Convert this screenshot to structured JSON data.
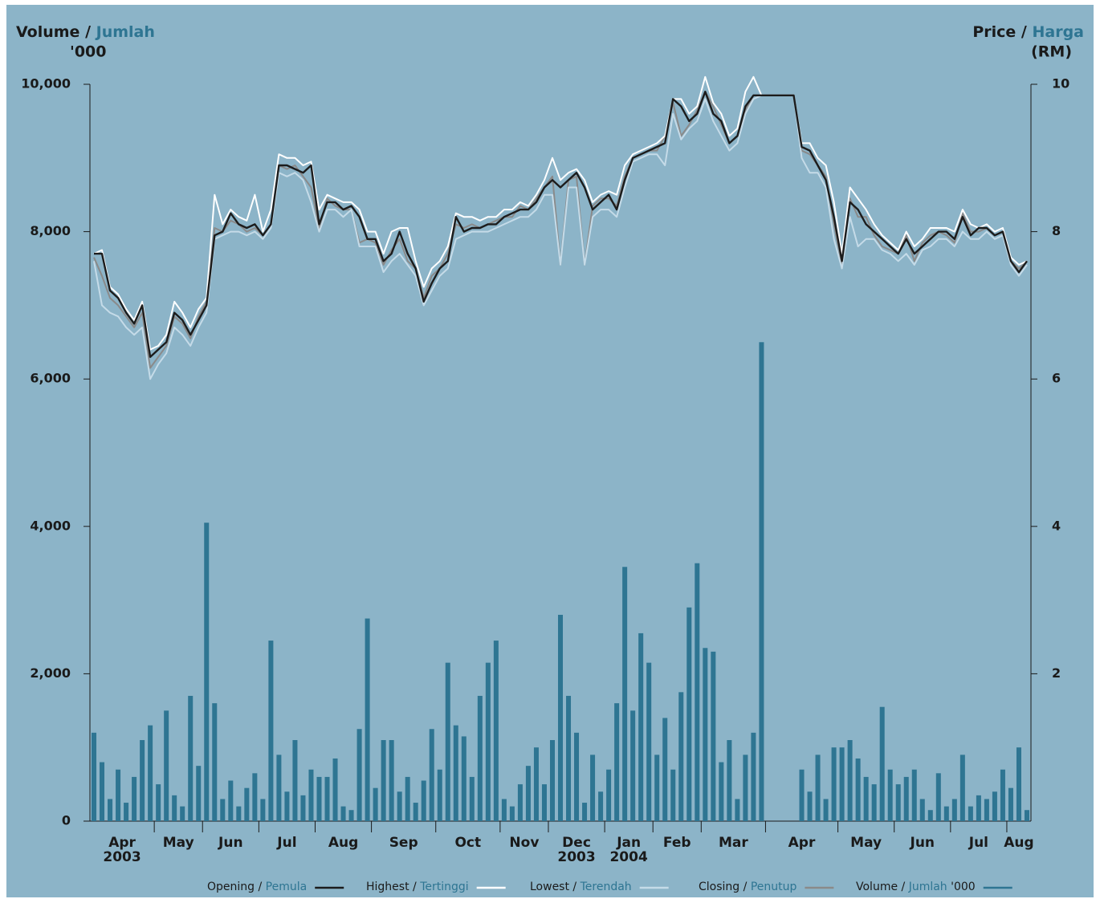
{
  "chart_data": {
    "type": "line",
    "y_label": "Volume",
    "y_label_alt": "Jumlah",
    "y_unit": "'000",
    "y2_label": "Price",
    "y2_label_alt": "Harga",
    "y2_unit": "(RM)",
    "categories": [
      "Apr",
      "May",
      "Jun",
      "Jul",
      "Aug",
      "Sep",
      "Oct",
      "Nov",
      "Dec",
      "Jan",
      "Feb",
      "Mar",
      "Apr",
      "May",
      "Jun",
      "Jul",
      "Aug"
    ],
    "years": [
      "2003",
      null,
      null,
      null,
      null,
      null,
      null,
      null,
      "2003",
      "2004",
      null,
      null,
      null,
      null,
      null,
      null,
      null
    ],
    "ylim": [
      0,
      10000
    ],
    "yticks": [
      0,
      {
        "value": 2000,
        "label": "2,000"
      },
      {
        "value": 4000,
        "label": "4,000"
      },
      {
        "value": 6000,
        "label": "6,000"
      },
      {
        "value": 8000,
        "label": "8,000"
      },
      {
        "value": 10000,
        "label": "10,000"
      }
    ],
    "y2lim": [
      0,
      10
    ],
    "y2ticks": [
      2,
      4,
      6,
      8,
      10
    ],
    "background": "#8cb4c8",
    "series": [
      {
        "name": "Closing",
        "alt_name": "Penutup",
        "color": "#8a8a8a",
        "axis": "y2",
        "values": [
          [
            7.65,
            7.4,
            7.1,
            7.0,
            6.85,
            6.7,
            6.9,
            6.15
          ],
          [
            6.3,
            6.45,
            6.85,
            6.75,
            6.55,
            6.85
          ],
          [
            7.05,
            8.05,
            8.0,
            8.15,
            8.1,
            8.0,
            8.05
          ],
          [
            7.95,
            8.1,
            8.9,
            8.85,
            8.9,
            8.75,
            8.6
          ],
          [
            8.05,
            8.45,
            8.35,
            8.3,
            8.3,
            7.85,
            7.9
          ],
          [
            7.85,
            7.55,
            7.75,
            7.9,
            7.6,
            7.5,
            7.1,
            7.4
          ],
          [
            7.5,
            7.7,
            8.1,
            8.05,
            8.1,
            8.05,
            8.1,
            8.15
          ],
          [
            8.2,
            8.2,
            8.35,
            8.3,
            8.45,
            8.6
          ],
          [
            8.75,
            7.55,
            8.7,
            8.75,
            7.55,
            8.35,
            8.45
          ],
          [
            8.45,
            8.35,
            8.75,
            9.0,
            9.05,
            9.1
          ],
          [
            9.1,
            9.3,
            9.75,
            9.3,
            9.45,
            9.65
          ],
          [
            9.9,
            9.7,
            9.45,
            9.2,
            9.3,
            9.65,
            9.85,
            9.85
          ],
          [
            9.85,
            9.85,
            9.85,
            9.85,
            9.1,
            9.05,
            8.9,
            8.75,
            8.1
          ],
          [
            7.55,
            8.45,
            8.2,
            8.2,
            7.95,
            7.8,
            7.75
          ],
          [
            7.7,
            7.95,
            7.6,
            7.85,
            7.95,
            8.0,
            7.95
          ],
          [
            7.85,
            8.25,
            8.0,
            8.0,
            8.05,
            7.95,
            8.0
          ],
          [
            7.6,
            7.5,
            7.6
          ]
        ]
      },
      {
        "name": "Lowest",
        "alt_name": "Terendah",
        "color": "#c5dbe8",
        "axis": "y2",
        "values": [
          [
            7.6,
            7.0,
            6.9,
            6.85,
            6.7,
            6.6,
            6.7,
            6.0
          ],
          [
            6.2,
            6.35,
            6.7,
            6.6,
            6.45,
            6.7
          ],
          [
            6.9,
            7.9,
            7.95,
            8.0,
            8.0,
            7.95,
            8.0
          ],
          [
            7.9,
            8.05,
            8.8,
            8.75,
            8.8,
            8.7,
            8.4
          ],
          [
            8.0,
            8.3,
            8.3,
            8.2,
            8.3,
            7.8,
            7.8
          ],
          [
            7.8,
            7.45,
            7.6,
            7.7,
            7.55,
            7.4,
            7.0,
            7.2
          ],
          [
            7.4,
            7.5,
            7.9,
            7.95,
            8.0,
            8.0,
            8.0,
            8.05
          ],
          [
            8.1,
            8.15,
            8.2,
            8.2,
            8.3,
            8.5
          ],
          [
            8.5,
            7.55,
            8.6,
            8.6,
            7.55,
            8.2,
            8.3
          ],
          [
            8.3,
            8.2,
            8.6,
            8.95,
            9.0,
            9.05
          ],
          [
            9.05,
            8.9,
            9.6,
            9.25,
            9.4,
            9.5
          ],
          [
            9.8,
            9.5,
            9.3,
            9.1,
            9.2,
            9.6,
            9.8,
            9.85
          ],
          [
            9.85,
            9.85,
            9.85,
            9.85,
            9.0,
            8.8,
            8.8,
            8.6,
            7.9
          ],
          [
            7.5,
            8.2,
            7.8,
            7.9,
            7.9,
            7.75,
            7.7
          ],
          [
            7.6,
            7.7,
            7.55,
            7.75,
            7.8,
            7.9,
            7.9
          ],
          [
            7.8,
            8.0,
            7.9,
            7.9,
            8.0,
            7.9,
            7.95
          ],
          [
            7.55,
            7.4,
            7.55
          ]
        ]
      },
      {
        "name": "Highest",
        "alt_name": "Tertinggi",
        "color": "#ffffff",
        "axis": "y2",
        "values": [
          [
            7.7,
            7.75,
            7.25,
            7.15,
            6.95,
            6.8,
            7.05,
            6.4
          ],
          [
            6.45,
            6.6,
            7.05,
            6.9,
            6.7,
            6.95
          ],
          [
            7.1,
            8.5,
            8.1,
            8.3,
            8.2,
            8.15,
            8.5
          ],
          [
            8.0,
            8.3,
            9.05,
            9.0,
            9.0,
            8.9,
            8.95
          ],
          [
            8.3,
            8.5,
            8.45,
            8.4,
            8.4,
            8.3,
            8.0
          ],
          [
            8.0,
            7.7,
            8.0,
            8.05,
            8.05,
            7.6,
            7.25,
            7.5
          ],
          [
            7.6,
            7.8,
            8.25,
            8.2,
            8.2,
            8.15,
            8.2,
            8.2
          ],
          [
            8.3,
            8.3,
            8.4,
            8.35,
            8.5,
            8.7
          ],
          [
            9.0,
            8.7,
            8.8,
            8.85,
            8.7,
            8.4,
            8.5
          ],
          [
            8.55,
            8.5,
            8.9,
            9.05,
            9.1,
            9.15
          ],
          [
            9.2,
            9.3,
            9.8,
            9.8,
            9.6,
            9.7
          ],
          [
            10.1,
            9.75,
            9.6,
            9.3,
            9.4,
            9.9,
            10.1,
            9.85
          ],
          [
            9.85,
            9.85,
            9.85,
            9.85,
            9.2,
            9.2,
            9.0,
            8.9,
            8.4
          ],
          [
            7.7,
            8.6,
            8.45,
            8.3,
            8.1,
            7.95,
            7.85
          ],
          [
            7.75,
            8.0,
            7.8,
            7.9,
            8.05,
            8.05,
            8.05
          ],
          [
            8.0,
            8.3,
            8.1,
            8.05,
            8.1,
            8.0,
            8.05
          ],
          [
            7.65,
            7.55,
            7.6
          ]
        ]
      },
      {
        "name": "Opening",
        "alt_name": "Pemula",
        "color": "#1c1c1c",
        "axis": "y2",
        "values": [
          [
            7.7,
            7.7,
            7.2,
            7.1,
            6.9,
            6.75,
            7.0,
            6.3
          ],
          [
            6.4,
            6.5,
            6.9,
            6.8,
            6.6,
            6.8
          ],
          [
            7.0,
            7.95,
            8.0,
            8.25,
            8.1,
            8.05,
            8.1
          ],
          [
            7.95,
            8.1,
            8.9,
            8.9,
            8.85,
            8.8,
            8.9
          ],
          [
            8.1,
            8.4,
            8.4,
            8.3,
            8.35,
            8.2,
            7.9
          ],
          [
            7.9,
            7.6,
            7.7,
            8.0,
            7.7,
            7.5,
            7.05,
            7.3
          ],
          [
            7.5,
            7.6,
            8.2,
            8.0,
            8.05,
            8.05,
            8.1,
            8.1
          ],
          [
            8.2,
            8.25,
            8.3,
            8.3,
            8.4,
            8.6
          ],
          [
            8.7,
            8.6,
            8.7,
            8.8,
            8.6,
            8.3,
            8.4
          ],
          [
            8.5,
            8.3,
            8.7,
            9.0,
            9.05,
            9.1
          ],
          [
            9.15,
            9.2,
            9.8,
            9.7,
            9.5,
            9.6
          ],
          [
            9.9,
            9.6,
            9.5,
            9.2,
            9.3,
            9.7,
            9.85,
            9.85
          ],
          [
            9.85,
            9.85,
            9.85,
            9.85,
            9.15,
            9.1,
            8.9,
            8.7,
            8.2
          ],
          [
            7.6,
            8.4,
            8.3,
            8.1,
            8.0,
            7.9,
            7.8
          ],
          [
            7.7,
            7.9,
            7.7,
            7.8,
            7.9,
            8.0,
            8.0
          ],
          [
            7.9,
            8.2,
            7.95,
            8.05,
            8.05,
            7.95,
            8.0
          ],
          [
            7.6,
            7.45,
            7.6
          ]
        ]
      },
      {
        "name": "Volume",
        "alt_name": "Jumlah",
        "unit": "'000",
        "color": "#2e7592",
        "kind": "bar",
        "values": [
          [
            1200,
            800,
            300,
            700,
            250,
            600,
            1100,
            1300
          ],
          [
            500,
            1500,
            350,
            200,
            1700,
            750
          ],
          [
            4050,
            1600,
            300,
            550,
            200,
            450,
            650
          ],
          [
            300,
            2450,
            900,
            400,
            1100,
            350,
            700
          ],
          [
            600,
            600,
            850,
            200,
            150,
            1250,
            2750
          ],
          [
            450,
            1100,
            1100,
            400,
            600,
            250,
            550,
            1250
          ],
          [
            700,
            2150,
            1300,
            1150,
            600,
            1700,
            2150,
            2450
          ],
          [
            300,
            200,
            500,
            750,
            1000,
            500
          ],
          [
            1100,
            2800,
            1700,
            1200,
            250,
            900,
            400
          ],
          [
            700,
            1600,
            3450,
            1500,
            2550,
            2150
          ],
          [
            900,
            1400,
            700,
            1750,
            2900,
            3500
          ],
          [
            2350,
            2300,
            800,
            1100,
            300,
            900,
            1200,
            6500
          ],
          [
            0,
            0,
            0,
            0,
            700,
            400,
            900,
            300,
            1000
          ],
          [
            1000,
            1100,
            850,
            600,
            500,
            1550,
            700
          ],
          [
            500,
            600,
            700,
            300,
            150,
            650,
            200
          ],
          [
            300,
            900,
            200,
            350,
            300,
            400,
            700
          ],
          [
            450,
            1000,
            150
          ]
        ]
      }
    ],
    "legend_order": [
      3,
      2,
      1,
      0,
      4
    ]
  }
}
